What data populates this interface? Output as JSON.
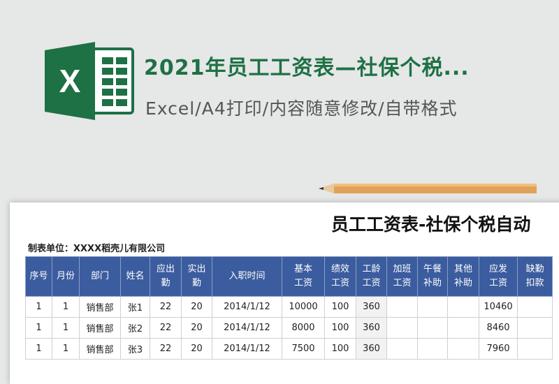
{
  "header": {
    "title": "2021年员工工资表—社保个税...",
    "subtitle": "Excel/A4打印/内容随意修改/自带格式"
  },
  "sheet": {
    "title": "员工工资表-社保个税自动",
    "company": "制表单位：XXXX稻壳儿有限公司"
  },
  "table": {
    "columns": [
      "序号",
      "月份",
      "部门",
      "姓名",
      "应出勤",
      "实出勤",
      "入职时间",
      "基本工资",
      "绩效工资",
      "工龄工资",
      "加班工资",
      "午餐补助",
      "其他补助",
      "应发工资",
      "缺勤扣款"
    ],
    "rows": [
      [
        1,
        1,
        "销售部",
        "张1",
        22,
        20,
        "2014/1/12",
        10000,
        100,
        360,
        null,
        null,
        null,
        10460,
        null
      ],
      [
        1,
        1,
        "销售部",
        "张2",
        22,
        20,
        "2014/1/12",
        8000,
        100,
        360,
        null,
        null,
        null,
        8460,
        null
      ],
      [
        1,
        1,
        "销售部",
        "张3",
        22,
        20,
        "2014/1/12",
        7500,
        100,
        360,
        null,
        null,
        null,
        7960,
        null
      ]
    ]
  }
}
